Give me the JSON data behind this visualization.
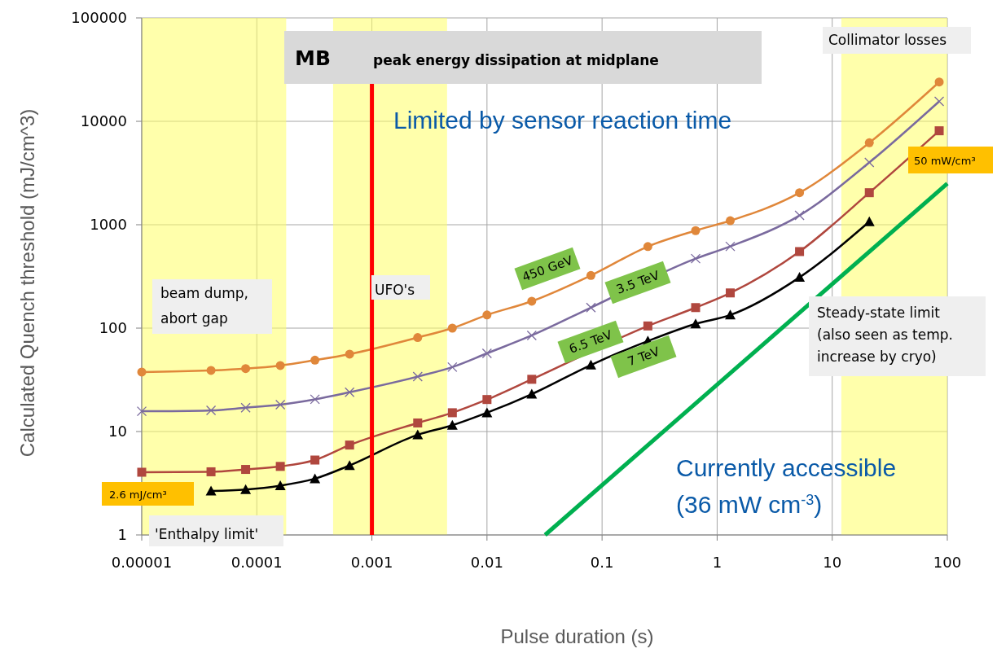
{
  "chart_data": {
    "type": "line",
    "title": "MB",
    "subtitle": "peak energy dissipation at midplane",
    "xlabel": "Pulse duration (s)",
    "ylabel": "Calculated Quench threshold (mJ/cm^3)",
    "x": [
      1e-05,
      4e-05,
      8e-05,
      0.00016,
      0.00032,
      0.00064,
      0.0025,
      0.005,
      0.01,
      0.0245,
      0.08,
      0.25,
      0.65,
      1.3,
      5.2,
      21,
      85
    ],
    "series": [
      {
        "name": "450 GeV",
        "color": "#e0873a",
        "marker": "circle",
        "values": [
          37.6,
          39,
          40.6,
          43.5,
          49,
          56,
          81,
          100,
          134,
          182,
          323,
          615,
          877,
          1094,
          2040,
          6200,
          24000
        ]
      },
      {
        "name": "3.5 TeV",
        "color": "#7a6a9e",
        "marker": "cross",
        "values": [
          15.7,
          16,
          17,
          18.2,
          20.5,
          24,
          34,
          42,
          57,
          85,
          158,
          null,
          470,
          617,
          1230,
          4000,
          15600
        ]
      },
      {
        "name": "6.5 TeV",
        "color": "#b0473e",
        "marker": "square",
        "values": [
          4.04,
          4.08,
          4.3,
          4.6,
          5.3,
          7.4,
          12.1,
          15.2,
          20.4,
          32,
          null,
          105,
          158,
          219,
          550,
          2040,
          8100
        ]
      },
      {
        "name": "7 TeV",
        "color": "#000000",
        "marker": "triangle",
        "values": [
          null,
          2.66,
          2.75,
          3.0,
          3.5,
          4.7,
          9.3,
          11.5,
          15.2,
          23,
          44,
          75,
          110,
          134,
          310,
          1070,
          null
        ]
      },
      {
        "type": "line",
        "color": "#00b050",
        "marker": "none",
        "x": [
          0.032,
          100
        ],
        "values": [
          1,
          2500
        ]
      }
    ],
    "log": "xy",
    "xlim": [
      1e-05,
      100
    ],
    "ylim": [
      1,
      100000
    ],
    "xticks": [
      {
        "value": 1e-05,
        "label": "0.00001"
      },
      {
        "value": 0.0001,
        "label": "0.0001"
      },
      {
        "value": 0.001,
        "label": "0.001"
      },
      {
        "value": 0.01,
        "label": "0.01"
      },
      {
        "value": 0.1,
        "label": "0.1"
      },
      1,
      10,
      100
    ],
    "yticks": [
      1,
      10,
      100,
      1000,
      10000,
      100000
    ],
    "grid": true,
    "line_style": "solid",
    "ref_lines": [
      {
        "axis": "x",
        "value": 0.001,
        "color": "#ff0000"
      }
    ],
    "bands": [
      {
        "axis": "x",
        "from": 1e-05,
        "to": 0.00018,
        "label": "beam dump,\nabort gap",
        "color": "#ffff66"
      },
      {
        "axis": "x",
        "from": 0.00046,
        "to": 0.0045,
        "label": "UFO's",
        "color": "#ffff66"
      },
      {
        "axis": "x",
        "from": 12,
        "to": 100,
        "label": "Collimator losses",
        "color": "#ffff66"
      }
    ],
    "annotations": [
      "Limited by sensor reaction time",
      "Steady-state limit\n(also seen as temp.\nincrease by cryo)",
      "'Enthalpy limit'",
      "2.6 mJ/cm³",
      "50 mW/cm³",
      "Currently accessible\n(36 mW cm$^{-3}$)"
    ]
  }
}
